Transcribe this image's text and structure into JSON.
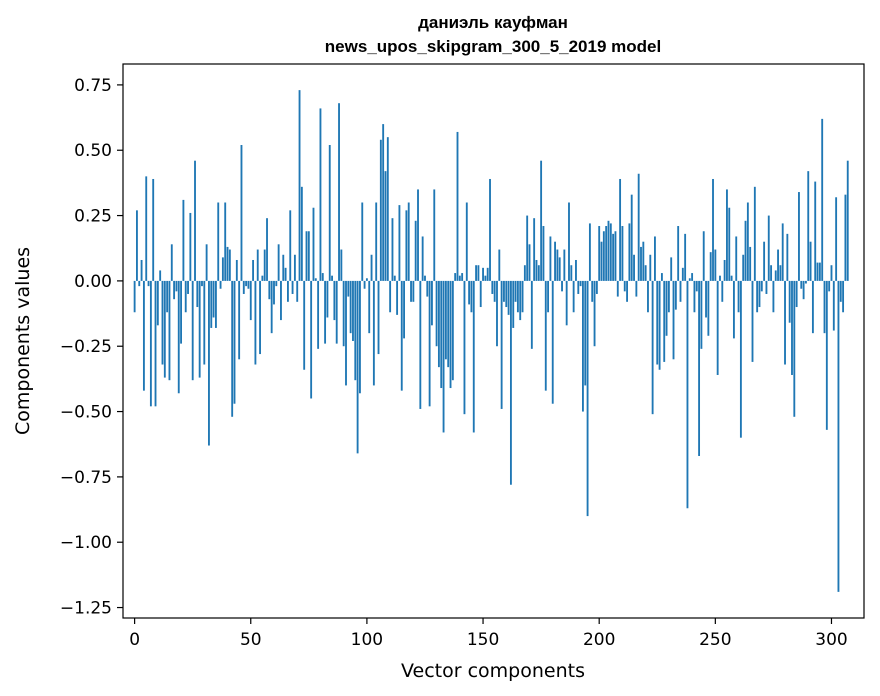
{
  "chart_data": {
    "type": "bar",
    "title_line1": "даниэль кауфман",
    "title_line2": "news_upos_skipgram_300_5_2019 model",
    "xlabel": "Vector components",
    "ylabel": "Components values",
    "xlim": [
      -5,
      314
    ],
    "ylim": [
      -1.29,
      0.83
    ],
    "xticks": [
      0,
      50,
      100,
      150,
      200,
      250,
      300
    ],
    "yticks": [
      0.75,
      0.5,
      0.25,
      0.0,
      -0.25,
      -0.5,
      -0.75,
      -1.0,
      -1.25
    ],
    "ytick_labels": [
      "0.75",
      "0.50",
      "0.25",
      "0.00",
      "−0.25",
      "−0.50",
      "−0.75",
      "−1.00",
      "−1.25"
    ],
    "grid": false,
    "color": "#1f77b4",
    "x_start": 0,
    "values": [
      -0.12,
      0.27,
      -0.02,
      0.08,
      -0.42,
      0.4,
      -0.02,
      -0.48,
      0.39,
      -0.48,
      -0.17,
      0.04,
      -0.32,
      -0.37,
      -0.12,
      -0.38,
      0.14,
      -0.07,
      -0.04,
      -0.43,
      -0.24,
      0.31,
      -0.12,
      -0.05,
      0.26,
      -0.38,
      0.46,
      -0.1,
      -0.37,
      -0.02,
      -0.32,
      0.14,
      -0.63,
      -0.18,
      -0.14,
      -0.18,
      0.3,
      -0.03,
      0.09,
      0.3,
      0.13,
      0.12,
      -0.52,
      -0.47,
      0.08,
      -0.3,
      0.52,
      -0.05,
      -0.02,
      -0.03,
      -0.15,
      0.08,
      -0.32,
      0.12,
      -0.28,
      0.02,
      0.12,
      0.24,
      -0.07,
      -0.2,
      -0.09,
      -0.02,
      0.14,
      -0.15,
      0.1,
      0.05,
      -0.08,
      0.27,
      -0.05,
      0.1,
      -0.08,
      0.73,
      0.36,
      -0.34,
      0.19,
      0.19,
      -0.45,
      0.28,
      0.01,
      -0.26,
      0.66,
      0.03,
      -0.24,
      -0.14,
      0.52,
      0.02,
      -0.15,
      -0.24,
      0.68,
      0.12,
      -0.25,
      -0.4,
      -0.06,
      -0.2,
      -0.23,
      -0.38,
      -0.66,
      -0.43,
      0.3,
      -0.03,
      0.01,
      -0.2,
      0.1,
      -0.4,
      0.3,
      -0.28,
      0.54,
      0.6,
      0.42,
      0.55,
      -0.12,
      0.24,
      0.02,
      -0.13,
      0.29,
      -0.42,
      -0.22,
      0.27,
      0.3,
      -0.08,
      -0.08,
      0.23,
      0.35,
      -0.49,
      0.17,
      0.02,
      -0.06,
      -0.48,
      -0.17,
      0.35,
      -0.25,
      -0.33,
      -0.41,
      -0.58,
      -0.3,
      -0.33,
      -0.41,
      -0.38,
      0.03,
      0.57,
      0.02,
      0.03,
      -0.51,
      0.3,
      -0.09,
      -0.12,
      -0.58,
      0.06,
      0.06,
      -0.1,
      0.05,
      0.02,
      0.05,
      0.39,
      -0.05,
      -0.08,
      -0.25,
      0.12,
      -0.49,
      -0.08,
      -0.1,
      -0.13,
      -0.78,
      -0.18,
      -0.08,
      -0.12,
      -0.15,
      -0.12,
      0.06,
      0.25,
      0.14,
      -0.26,
      0.24,
      0.08,
      0.06,
      0.46,
      0.21,
      -0.42,
      -0.12,
      0.17,
      -0.47,
      0.15,
      0.12,
      0.09,
      -0.04,
      0.12,
      -0.17,
      0.3,
      0.06,
      -0.12,
      0.08,
      -0.05,
      -0.02,
      -0.5,
      -0.4,
      -0.9,
      0.22,
      -0.08,
      -0.25,
      -0.05,
      0.21,
      0.15,
      0.19,
      0.21,
      0.23,
      0.22,
      0.18,
      0.19,
      -0.06,
      0.39,
      0.21,
      -0.04,
      -0.08,
      0.22,
      0.33,
      0.1,
      -0.06,
      0.41,
      0.13,
      0.15,
      0.06,
      -0.12,
      0.1,
      -0.51,
      0.17,
      -0.32,
      -0.34,
      0.03,
      -0.31,
      -0.21,
      -0.12,
      0.09,
      -0.3,
      -0.11,
      0.21,
      -0.08,
      0.05,
      0.18,
      -0.87,
      0.01,
      0.03,
      -0.12,
      -0.04,
      -0.67,
      -0.26,
      0.19,
      -0.14,
      -0.21,
      0.11,
      0.39,
      0.12,
      -0.36,
      0.02,
      -0.08,
      0.08,
      0.35,
      0.28,
      0.02,
      -0.22,
      0.17,
      -0.12,
      -0.6,
      0.1,
      0.23,
      0.3,
      0.13,
      -0.31,
      0.36,
      -0.12,
      -0.1,
      -0.04,
      0.15,
      -0.05,
      0.25,
      0.06,
      -0.12,
      0.04,
      0.12,
      0.06,
      0.22,
      -0.32,
      0.18,
      -0.16,
      -0.36,
      -0.52,
      -0.1,
      0.34,
      -0.03,
      -0.07,
      -0.01,
      0.42,
      0.15,
      -0.2,
      0.38,
      0.07,
      0.07,
      0.62,
      -0.2,
      -0.57,
      -0.04,
      0.06,
      -0.19,
      0.32,
      -1.19,
      -0.08,
      -0.12,
      0.33,
      0.46
    ]
  }
}
